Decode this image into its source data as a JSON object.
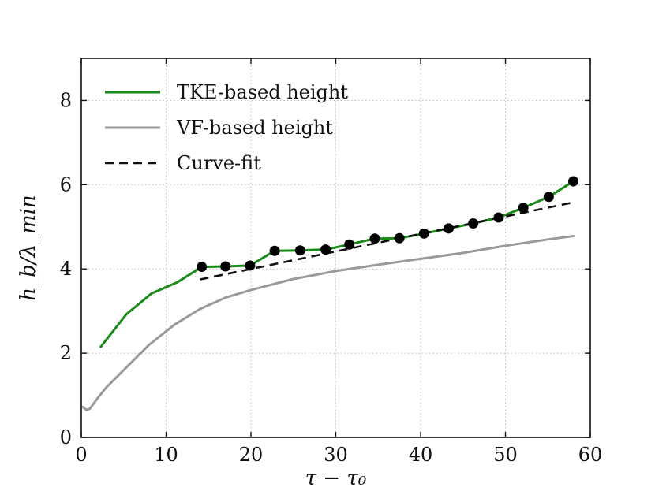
{
  "chart_data": {
    "type": "line",
    "title": "",
    "xlabel": "τ − τ₀",
    "ylabel": "h_b/λ_min",
    "xlim": [
      0,
      60
    ],
    "ylim": [
      0,
      9
    ],
    "xticks": [
      0,
      10,
      20,
      30,
      40,
      50,
      60
    ],
    "yticks": [
      0,
      2,
      4,
      6,
      8
    ],
    "grid": true,
    "legend_position": "top-left",
    "colors": {
      "tke": "#1a8a1a",
      "vf": "#9a9a9a",
      "fit": "#111111",
      "markers": "#000000"
    },
    "series": [
      {
        "name": "TKE-based height",
        "style": "solid",
        "color": "#1a8a1a",
        "x": [
          2.3,
          5.3,
          8.3,
          11.3,
          14.2,
          17.0,
          19.9,
          22.8,
          25.8,
          28.8,
          31.6,
          34.6,
          37.5,
          40.4,
          43.3,
          46.2,
          49.2,
          52.1,
          55.1,
          58.0
        ],
        "y": [
          2.15,
          2.92,
          3.42,
          3.68,
          4.05,
          4.06,
          4.08,
          4.43,
          4.44,
          4.46,
          4.58,
          4.72,
          4.73,
          4.84,
          4.96,
          5.08,
          5.22,
          5.45,
          5.71,
          6.08
        ]
      },
      {
        "name": "VF-based height",
        "style": "solid",
        "color": "#9a9a9a",
        "x": [
          0.2,
          0.6,
          1.0,
          2.0,
          3.0,
          5.0,
          8.0,
          11.0,
          14.0,
          17.0,
          20.0,
          25.0,
          30.0,
          35.0,
          40.0,
          45.0,
          50.0,
          55.0,
          58.0
        ],
        "y": [
          0.72,
          0.65,
          0.68,
          0.95,
          1.2,
          1.6,
          2.2,
          2.68,
          3.05,
          3.32,
          3.5,
          3.76,
          3.95,
          4.1,
          4.24,
          4.38,
          4.55,
          4.7,
          4.78
        ]
      },
      {
        "name": "Curve-fit",
        "style": "dashed",
        "color": "#111111",
        "x": [
          14.0,
          58.0
        ],
        "y": [
          3.75,
          5.58
        ]
      }
    ],
    "markers": {
      "series": "TKE-based height",
      "x": [
        14.2,
        17.0,
        19.9,
        22.8,
        25.8,
        28.8,
        31.6,
        34.6,
        37.5,
        40.4,
        43.3,
        46.2,
        49.2,
        52.1,
        55.1,
        58.0
      ],
      "y": [
        4.05,
        4.06,
        4.08,
        4.43,
        4.44,
        4.46,
        4.58,
        4.72,
        4.73,
        4.84,
        4.96,
        5.08,
        5.22,
        5.45,
        5.71,
        6.08
      ]
    },
    "legend": [
      "TKE-based height",
      "VF-based height",
      "Curve-fit"
    ]
  }
}
